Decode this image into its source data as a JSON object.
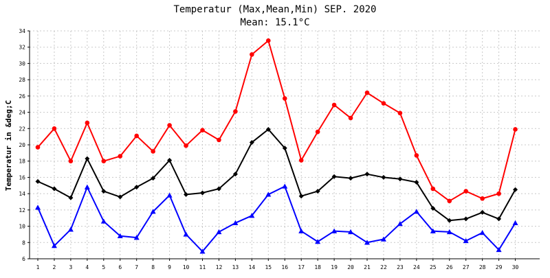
{
  "chart_data": {
    "type": "line",
    "title": "Temperatur (Max,Mean,Min) SEP. 2020",
    "subtitle": "Mean: 15.1°C",
    "xlabel": "",
    "ylabel": "Temperatur in &deg;C",
    "ylim": [
      6,
      34
    ],
    "yticks": [
      6,
      8,
      10,
      12,
      14,
      16,
      18,
      20,
      22,
      24,
      26,
      28,
      30,
      32,
      34
    ],
    "grid": true,
    "categories": [
      "1",
      "2",
      "3",
      "4",
      "5",
      "6",
      "7",
      "8",
      "9",
      "10",
      "11",
      "12",
      "13",
      "14",
      "15",
      "16",
      "17",
      "18",
      "19",
      "20",
      "21",
      "22",
      "23",
      "24",
      "25",
      "26",
      "27",
      "28",
      "29",
      "30"
    ],
    "series": [
      {
        "color": "#ff0000",
        "marker": "circle",
        "values": [
          19.7,
          22.0,
          18.0,
          22.7,
          18.0,
          18.6,
          21.1,
          19.2,
          22.4,
          19.9,
          21.8,
          20.6,
          24.1,
          31.1,
          32.8,
          25.7,
          18.1,
          21.6,
          24.9,
          23.3,
          26.4,
          25.1,
          23.9,
          18.7,
          14.6,
          13.1,
          14.3,
          13.4,
          14.0,
          21.9
        ]
      },
      {
        "color": "#000000",
        "marker": "diamond",
        "values": [
          15.5,
          14.6,
          13.5,
          18.3,
          14.3,
          13.6,
          14.8,
          15.9,
          18.1,
          13.9,
          14.1,
          14.6,
          16.4,
          20.3,
          21.9,
          19.6,
          13.7,
          14.3,
          16.1,
          15.9,
          16.4,
          16.0,
          15.8,
          15.4,
          12.2,
          10.7,
          10.9,
          11.7,
          10.9,
          14.5
        ]
      },
      {
        "color": "#0000ff",
        "marker": "triangle",
        "values": [
          12.3,
          7.6,
          9.6,
          14.8,
          10.6,
          8.8,
          8.6,
          11.8,
          13.8,
          9.0,
          6.9,
          9.3,
          10.4,
          11.3,
          13.9,
          14.9,
          9.4,
          8.1,
          9.4,
          9.3,
          8.0,
          8.4,
          10.3,
          11.8,
          9.4,
          9.3,
          8.2,
          9.2,
          7.1,
          10.4
        ]
      }
    ]
  }
}
